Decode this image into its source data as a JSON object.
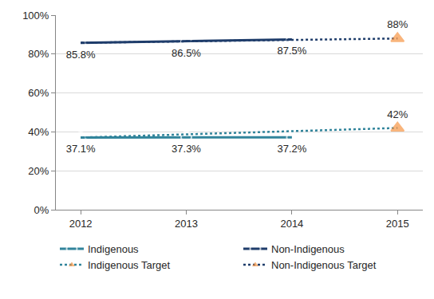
{
  "chart_data": {
    "type": "line",
    "categories": [
      "2012",
      "2013",
      "2014",
      "2015"
    ],
    "series": [
      {
        "name": "Indigenous",
        "color": "#31849b",
        "marker": "circle-open",
        "line_style": "solid",
        "values": [
          37.1,
          37.3,
          37.2,
          null
        ],
        "value_labels": [
          "37.1%",
          "37.3%",
          "37.2%",
          null
        ]
      },
      {
        "name": "Non-Indigenous",
        "color": "#1f3d6b",
        "marker": "circle-open",
        "line_style": "solid",
        "values": [
          85.8,
          86.5,
          87.5,
          null
        ],
        "value_labels": [
          "85.8%",
          "86.5%",
          "87.5%",
          null
        ]
      },
      {
        "name": "Indigenous Target",
        "color": "#31849b",
        "marker": "triangle-up",
        "line_style": "dot",
        "values": [
          37.1,
          38.7,
          40.3,
          42
        ],
        "value_labels": [
          null,
          null,
          null,
          "42%"
        ]
      },
      {
        "name": "Non-Indigenous Target",
        "color": "#1f3d6b",
        "marker": "triangle-up",
        "line_style": "dot",
        "values": [
          85.8,
          86.5,
          87.5,
          88
        ],
        "value_labels": [
          null,
          null,
          null,
          "88%"
        ]
      }
    ],
    "ylim": [
      0,
      100
    ],
    "yticks": [
      {
        "value": 0,
        "label": "0%"
      },
      {
        "value": 20,
        "label": "20%"
      },
      {
        "value": 40,
        "label": "40%"
      },
      {
        "value": 60,
        "label": "60%"
      },
      {
        "value": 80,
        "label": "80%"
      },
      {
        "value": 100,
        "label": "100%"
      }
    ],
    "grid": true,
    "data_labels": true,
    "legend": "bottom"
  }
}
